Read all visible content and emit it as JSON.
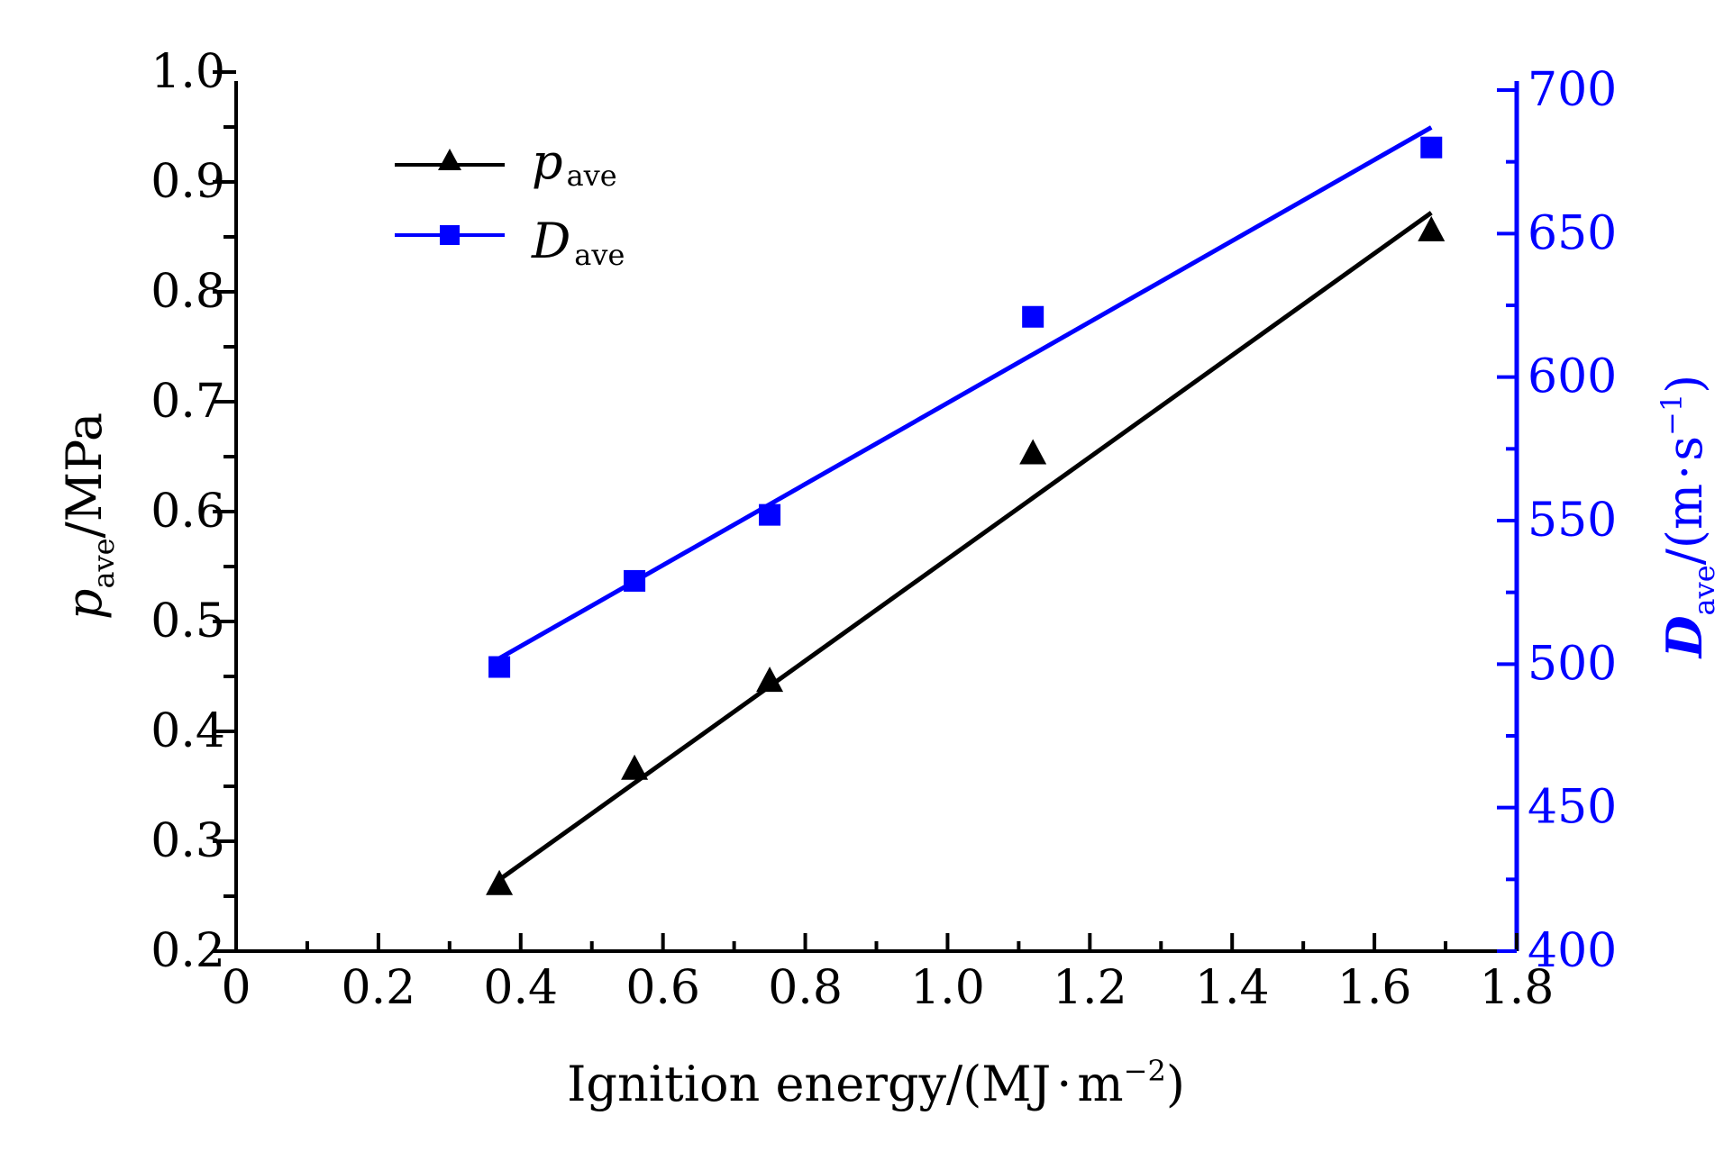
{
  "chart_data": {
    "type": "scatter",
    "x": {
      "label_main": "Ignition energy/(MJ",
      "label_dot": "·",
      "label_unit": "m",
      "label_exp": "−2",
      "label_close": ")",
      "range": [
        0,
        1.8
      ],
      "major_ticks": [
        0,
        0.2,
        0.4,
        0.6,
        0.8,
        1.0,
        1.2,
        1.4,
        1.6,
        1.8
      ],
      "tick_labels": [
        "0",
        "0.2",
        "0.4",
        "0.6",
        "0.8",
        "1.0",
        "1.2",
        "1.4",
        "1.6",
        "1.8"
      ],
      "minor_step": 0.1
    },
    "y_left": {
      "label_var": "p",
      "label_sub": "ave",
      "label_unit": "/MPa",
      "range": [
        0.2,
        1.0
      ],
      "major_ticks": [
        0.2,
        0.3,
        0.4,
        0.5,
        0.6,
        0.7,
        0.8,
        0.9,
        1.0
      ],
      "tick_labels": [
        "0.2",
        "0.3",
        "0.4",
        "0.5",
        "0.6",
        "0.7",
        "0.8",
        "0.9",
        "1.0"
      ],
      "minor_step": 0.05,
      "color": "#000000"
    },
    "y_right": {
      "label_var": "D",
      "label_sub": "ave",
      "label_unit": "/(m",
      "label_dot": "·",
      "label_s": "s",
      "label_exp": "−1",
      "label_close": ")",
      "range": [
        400,
        710
      ],
      "major_ticks": [
        400,
        450,
        500,
        550,
        600,
        650,
        700
      ],
      "tick_labels": [
        "400",
        "450",
        "500",
        "550",
        "600",
        "650",
        "700"
      ],
      "minor_step": 25,
      "color": "#0000ff"
    },
    "series": [
      {
        "name": "p",
        "name_sub": "ave",
        "axis": "left",
        "marker": "triangle",
        "color": "#000000",
        "x": [
          0.37,
          0.56,
          0.75,
          1.12,
          1.68
        ],
        "y": [
          0.26,
          0.365,
          0.445,
          0.652,
          0.855
        ],
        "fit": {
          "x": [
            0.37,
            1.68
          ],
          "y": [
            0.265,
            0.872
          ]
        }
      },
      {
        "name": "D",
        "name_sub": "ave",
        "axis": "right",
        "marker": "square",
        "color": "#0000ff",
        "x": [
          0.37,
          0.56,
          0.75,
          1.12,
          1.68
        ],
        "y": [
          499,
          529,
          552,
          621,
          680
        ],
        "fit": {
          "x": [
            0.37,
            1.68
          ],
          "y": [
            502,
            687
          ]
        }
      }
    ],
    "legend_position": "top-left"
  }
}
